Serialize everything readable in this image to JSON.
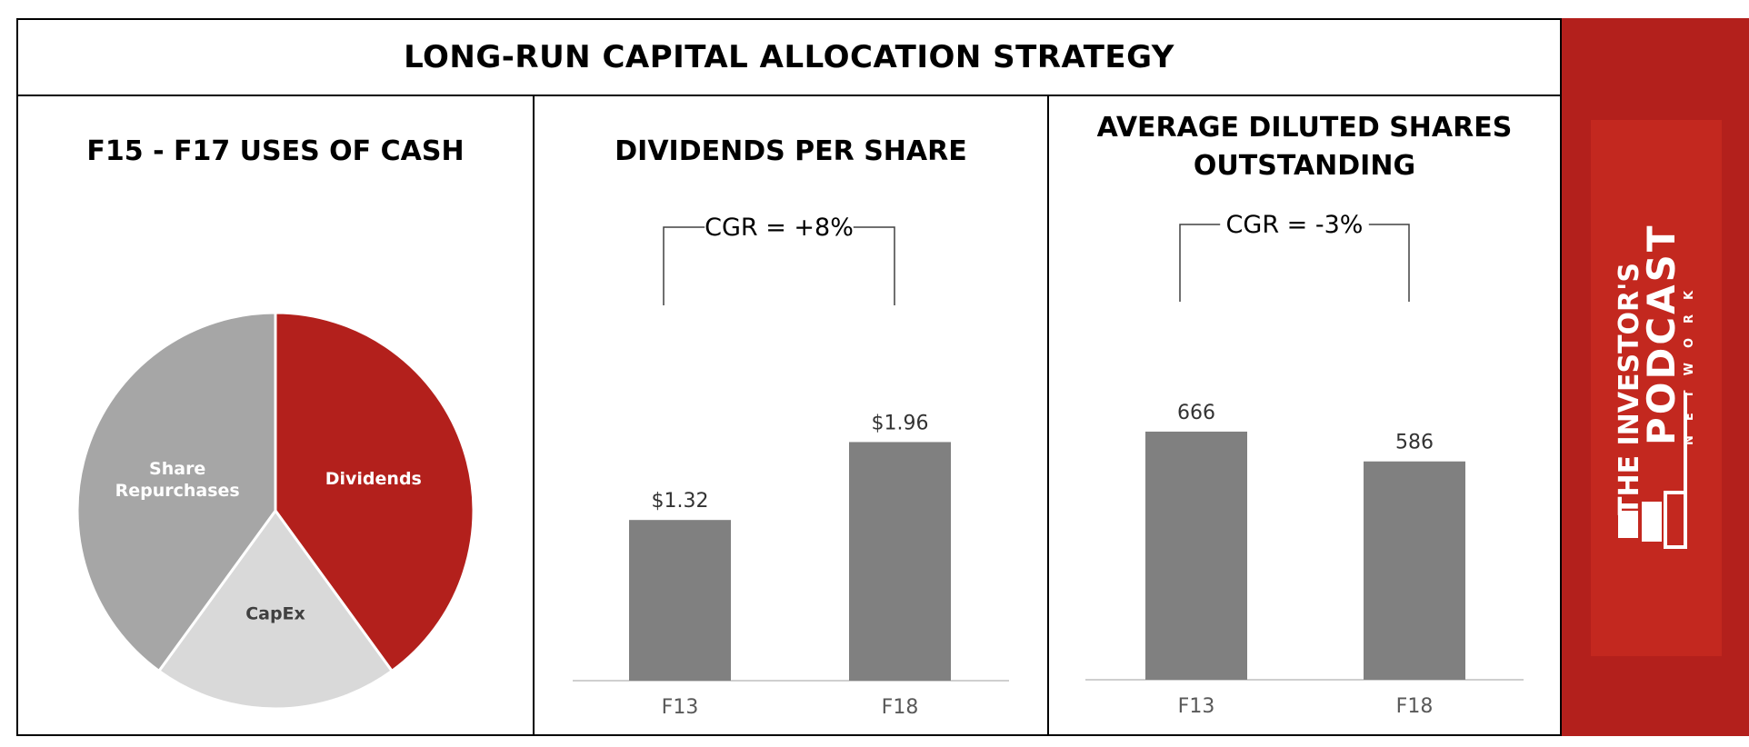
{
  "header": {
    "title": "LONG-RUN CAPITAL ALLOCATION STRATEGY"
  },
  "colors": {
    "accent_red": "#b3201c",
    "bar_gray": "#808080",
    "pie_light": "#d9d9d9",
    "pie_mid": "#a6a6a6"
  },
  "brand": {
    "line1": "THE INVESTOR'S",
    "line2": "PODCAST",
    "line3": "NETWORK"
  },
  "chart_data": [
    {
      "type": "pie",
      "title": "F15 - F17 USES OF CASH",
      "slices": [
        {
          "label": "Dividends",
          "value": 40,
          "color": "#b3201c"
        },
        {
          "label": "CapEx",
          "value": 20,
          "color": "#d9d9d9"
        },
        {
          "label": "Share Repurchases",
          "value": 40,
          "color": "#a6a6a6"
        }
      ]
    },
    {
      "type": "bar",
      "title": "DIVIDENDS PER SHARE",
      "categories": [
        "F13",
        "F18"
      ],
      "values": [
        1.32,
        1.96
      ],
      "value_labels": [
        "$1.32",
        "$1.96"
      ],
      "annotation": "CGR = +8%",
      "ylim": [
        0,
        2.65
      ]
    },
    {
      "type": "bar",
      "title": "AVERAGE DILUTED SHARES OUTSTANDING",
      "title_lines": [
        "AVERAGE DILUTED SHARES",
        "OUTSTANDING"
      ],
      "categories": [
        "F13",
        "F18"
      ],
      "values": [
        666,
        586
      ],
      "value_labels": [
        "666",
        "586"
      ],
      "annotation": "CGR = -3%",
      "ylim": [
        0,
        800
      ]
    }
  ]
}
